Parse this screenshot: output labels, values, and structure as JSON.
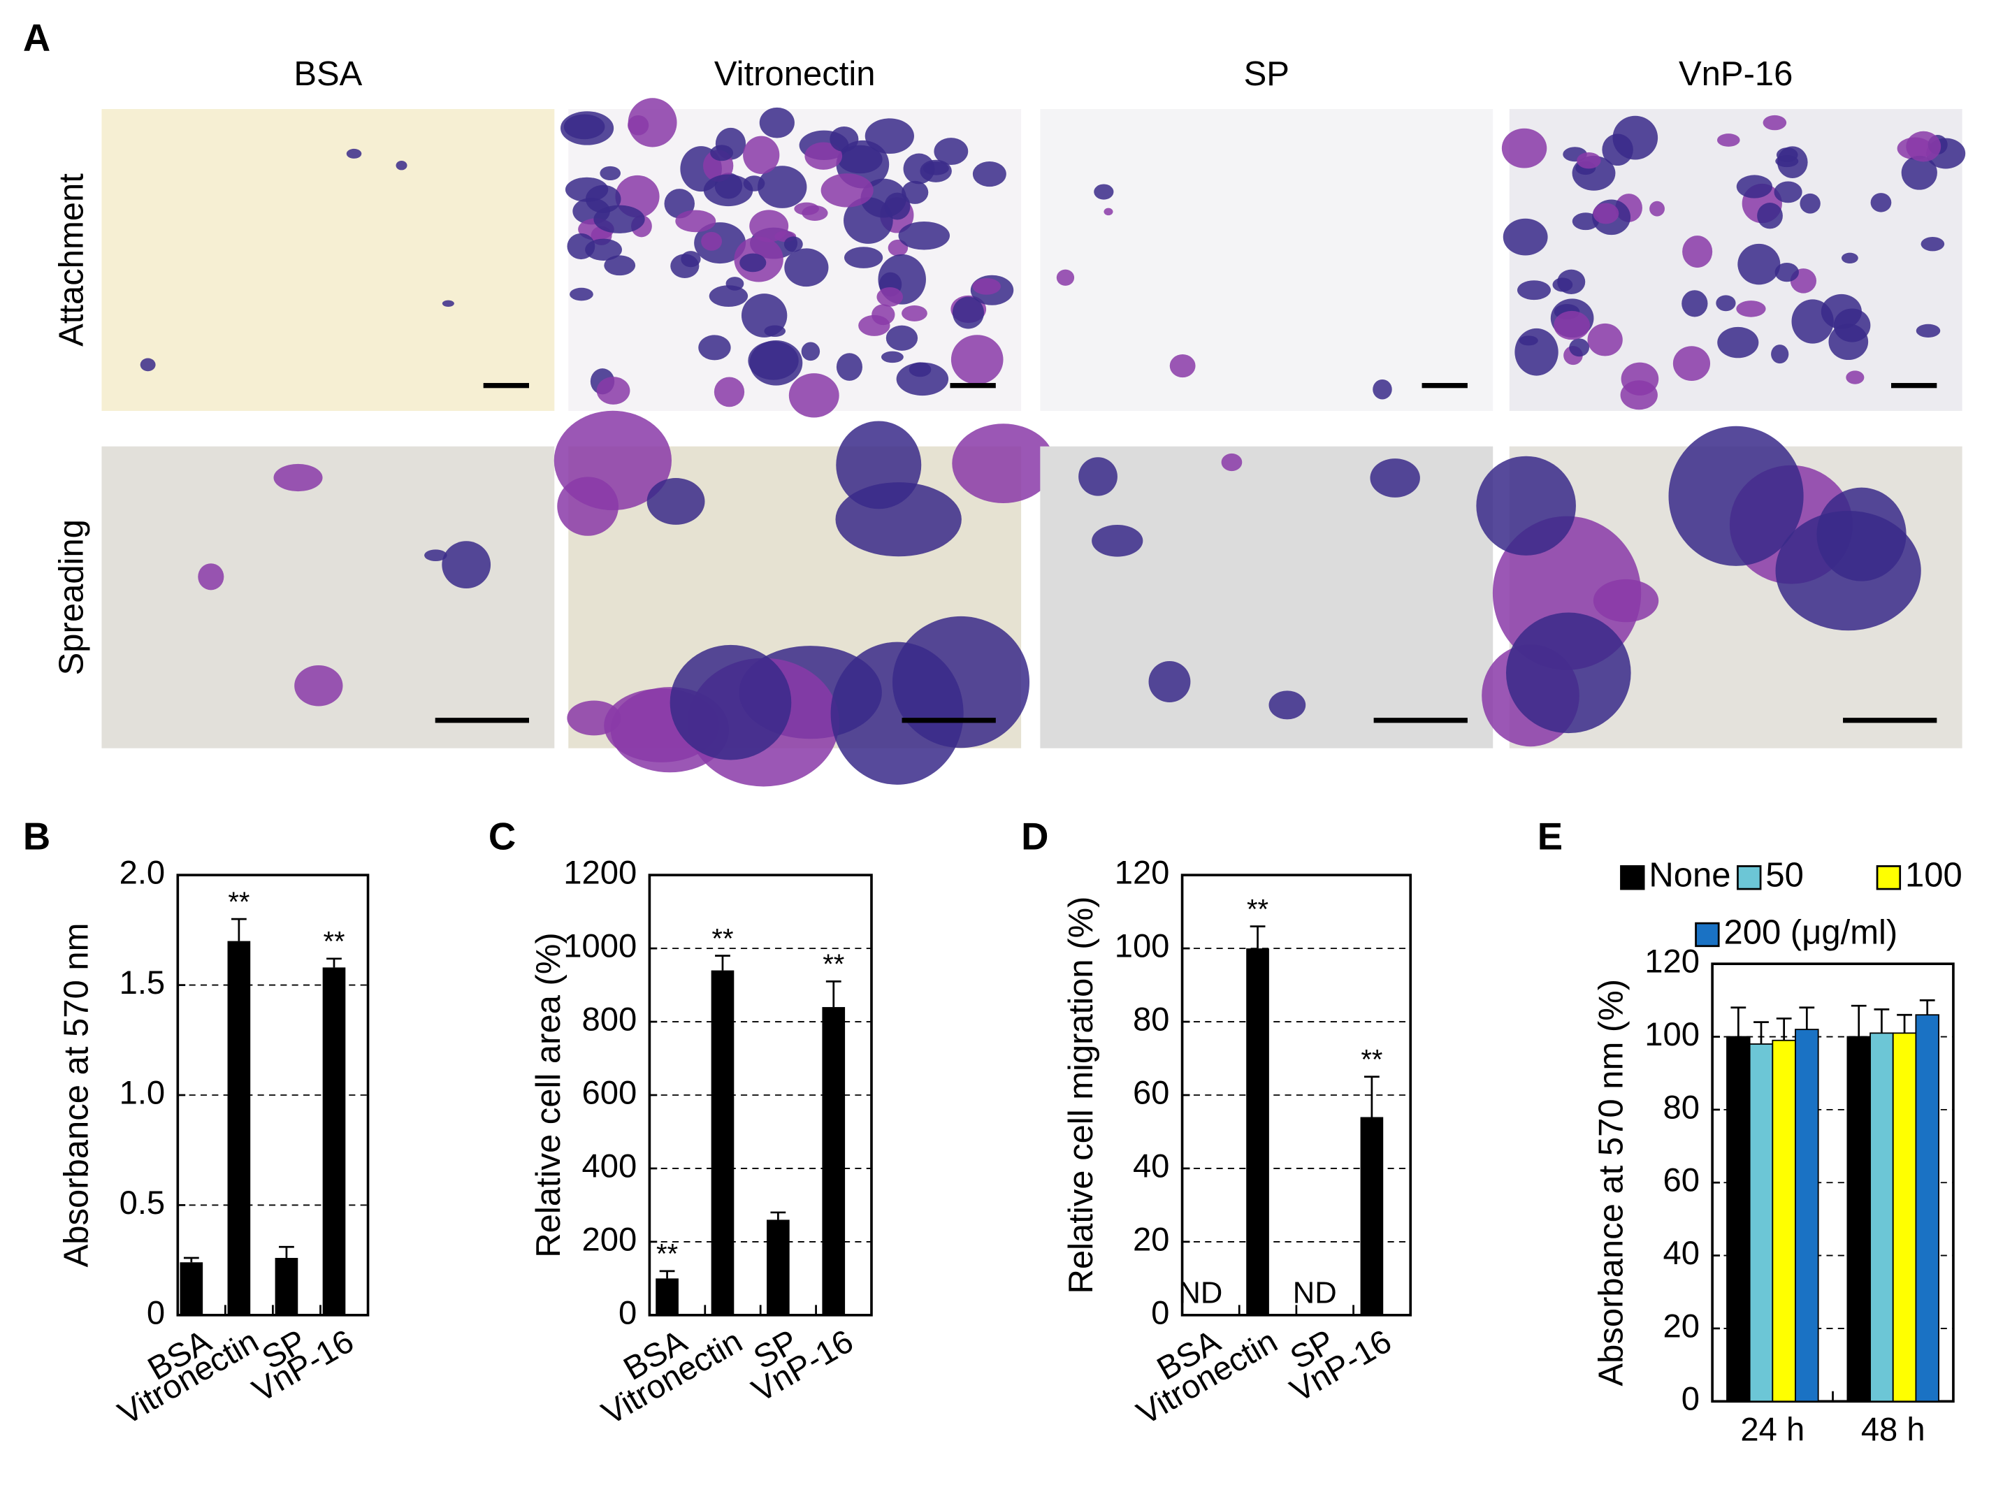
{
  "panel_a": {
    "label": "A",
    "columns": [
      "BSA",
      "Vitronectin",
      "SP",
      "VnP-16"
    ],
    "rows": [
      "Attachment",
      "Spreading"
    ]
  },
  "chart_data": [
    {
      "type": "bar",
      "label": "B",
      "ylabel": "Absorbance at 570 nm",
      "categories": [
        "BSA",
        "Vitronectin",
        "SP",
        "VnP-16"
      ],
      "values": [
        0.24,
        1.7,
        0.26,
        1.58
      ],
      "errors": [
        0.02,
        0.1,
        0.05,
        0.04
      ],
      "significance": [
        null,
        "**",
        null,
        "**"
      ],
      "color": "#000000",
      "ylim": [
        0,
        2
      ],
      "yticks": [
        0,
        0.5,
        {
          "value": 1,
          "label": "1.0"
        },
        1.5,
        {
          "value": 2,
          "label": "2.0"
        }
      ],
      "grid": true
    },
    {
      "type": "bar",
      "label": "C",
      "ylabel": "Relative cell area (%)",
      "categories": [
        "BSA",
        "Vitronectin",
        "SP",
        "VnP-16"
      ],
      "values": [
        100,
        940,
        260,
        840
      ],
      "errors": [
        20,
        40,
        20,
        70
      ],
      "significance": [
        "**",
        "**",
        null,
        "**"
      ],
      "color": "#000000",
      "ylim": [
        0,
        1200
      ],
      "yticks": [
        0,
        200,
        400,
        600,
        800,
        1000,
        1200
      ],
      "grid": true
    },
    {
      "type": "bar",
      "label": "D",
      "ylabel": "Relative cell migration (%)",
      "categories": [
        "BSA",
        "Vitronectin",
        "SP",
        "VnP-16"
      ],
      "values": [
        null,
        100,
        null,
        54
      ],
      "errors": [
        null,
        6,
        null,
        11
      ],
      "annotations": [
        "ND",
        null,
        "ND",
        null
      ],
      "significance": [
        null,
        "**",
        null,
        "**"
      ],
      "color": "#000000",
      "ylim": [
        0,
        120
      ],
      "yticks": [
        0,
        20,
        40,
        60,
        80,
        100,
        120
      ],
      "grid": true
    },
    {
      "type": "grouped-bar",
      "label": "E",
      "ylabel": "Absorbance at 570 nm (%)",
      "categories": [
        "24 h",
        "48 h"
      ],
      "series": [
        {
          "name": "None",
          "color": "#000000",
          "values": [
            100,
            100
          ],
          "errors": [
            8,
            8.5
          ]
        },
        {
          "name": "50",
          "color": "#6cc6d6",
          "values": [
            98,
            101
          ],
          "errors": [
            6,
            6.5
          ]
        },
        {
          "name": "100",
          "color": "#ffff00",
          "values": [
            99,
            101
          ],
          "errors": [
            6,
            5
          ]
        },
        {
          "name": "200 (μg/ml)",
          "color": "#1a72c4",
          "values": [
            102,
            106
          ],
          "errors": [
            6,
            4
          ]
        }
      ],
      "ylim": [
        0,
        120
      ],
      "yticks": [
        0,
        20,
        40,
        60,
        80,
        100,
        120
      ],
      "grid": true
    }
  ]
}
